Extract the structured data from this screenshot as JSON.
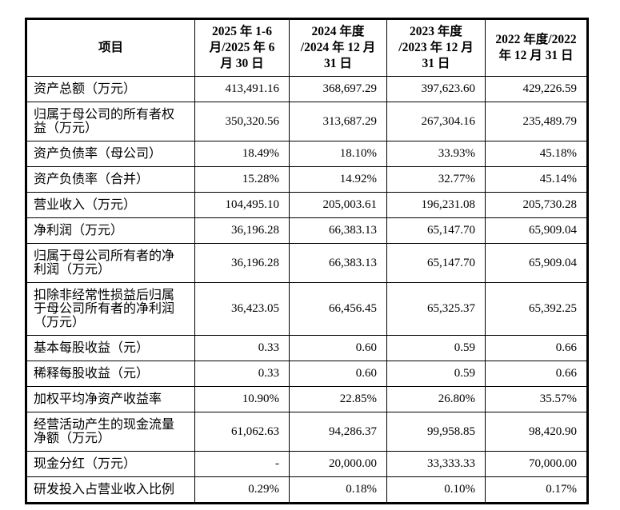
{
  "table": {
    "columns": [
      {
        "label": "项目"
      },
      {
        "label": "2025 年 1-6\n月/2025 年 6\n月 30 日"
      },
      {
        "label": "2024 年度\n/2024 年 12 月\n31 日"
      },
      {
        "label": "2023 年度\n/2023 年 12 月\n31 日"
      },
      {
        "label": "2022 年度/2022\n年 12 月 31 日"
      }
    ],
    "rows": [
      {
        "label": "资产总额（万元）",
        "values": [
          "413,491.16",
          "368,697.29",
          "397,623.60",
          "429,226.59"
        ]
      },
      {
        "label": "归属于母公司的所有者权益（万元）",
        "values": [
          "350,320.56",
          "313,687.29",
          "267,304.16",
          "235,489.79"
        ]
      },
      {
        "label": "资产负债率（母公司）",
        "values": [
          "18.49%",
          "18.10%",
          "33.93%",
          "45.18%"
        ]
      },
      {
        "label": "资产负债率（合并）",
        "values": [
          "15.28%",
          "14.92%",
          "32.77%",
          "45.14%"
        ]
      },
      {
        "label": "营业收入（万元）",
        "values": [
          "104,495.10",
          "205,003.61",
          "196,231.08",
          "205,730.28"
        ]
      },
      {
        "label": "净利润（万元）",
        "values": [
          "36,196.28",
          "66,383.13",
          "65,147.70",
          "65,909.04"
        ]
      },
      {
        "label": "归属于母公司所有者的净利润（万元）",
        "values": [
          "36,196.28",
          "66,383.13",
          "65,147.70",
          "65,909.04"
        ]
      },
      {
        "label": "扣除非经常性损益后归属于母公司所有者的净利润（万元）",
        "values": [
          "36,423.05",
          "66,456.45",
          "65,325.37",
          "65,392.25"
        ]
      },
      {
        "label": "基本每股收益（元）",
        "values": [
          "0.33",
          "0.60",
          "0.59",
          "0.66"
        ]
      },
      {
        "label": "稀释每股收益（元）",
        "values": [
          "0.33",
          "0.60",
          "0.59",
          "0.66"
        ]
      },
      {
        "label": "加权平均净资产收益率",
        "values": [
          "10.90%",
          "22.85%",
          "26.80%",
          "35.57%"
        ]
      },
      {
        "label": "经营活动产生的现金流量净额（万元）",
        "values": [
          "61,062.63",
          "94,286.37",
          "99,958.85",
          "98,420.90"
        ]
      },
      {
        "label": "现金分红（万元）",
        "values": [
          "-",
          "20,000.00",
          "33,333.33",
          "70,000.00"
        ]
      },
      {
        "label": "研发投入占营业收入比例",
        "values": [
          "0.29%",
          "0.18%",
          "0.10%",
          "0.17%"
        ]
      }
    ]
  },
  "colors": {
    "border": "#000000",
    "text": "#000000",
    "background": "#ffffff"
  }
}
